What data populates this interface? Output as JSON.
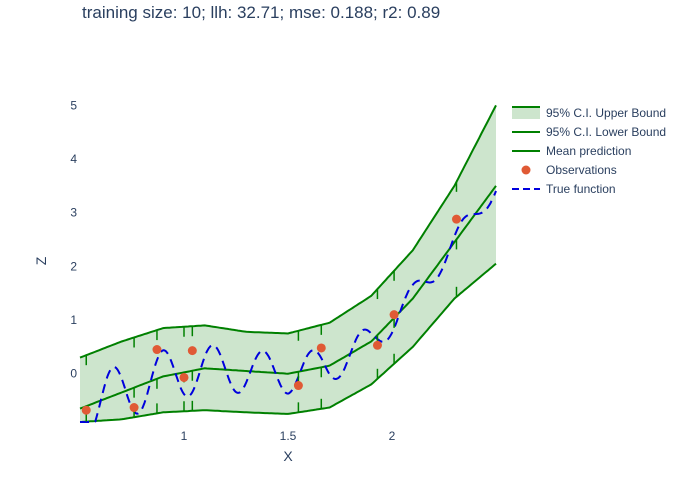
{
  "chart_data": {
    "type": "line",
    "title": "training size: 10; llh: 32.71; mse: 0.188; r2: 0.89",
    "xlabel": "X",
    "ylabel": "Z",
    "xlim": [
      0.5,
      2.5
    ],
    "ylim": [
      -0.9,
      5.1
    ],
    "x_ticks": [
      1,
      1.5,
      2
    ],
    "x_tick_labels": [
      "1",
      "1.5",
      "2"
    ],
    "y_ticks": [
      0,
      1,
      2,
      3,
      4,
      5
    ],
    "y_tick_labels": [
      "0",
      "1",
      "2",
      "3",
      "4",
      "5"
    ],
    "grid": false,
    "legend_position": "top-right",
    "colors": {
      "band_fill": "#cde5cd",
      "bound_line": "#008000",
      "mean_line": "#008000",
      "observation": "#e05a35",
      "true_function": "#0000dd"
    },
    "series": [
      {
        "name": "95% C.I. Upper Bound",
        "style": "line-with-fill",
        "x": [
          0.5,
          0.7,
          0.9,
          1.1,
          1.3,
          1.5,
          1.7,
          1.9,
          2.1,
          2.3,
          2.5
        ],
        "y": [
          0.3,
          0.6,
          0.85,
          0.9,
          0.78,
          0.75,
          0.95,
          1.45,
          2.3,
          3.5,
          5.0
        ]
      },
      {
        "name": "95% C.I. Lower Bound",
        "style": "line",
        "x": [
          0.5,
          0.7,
          0.9,
          1.1,
          1.3,
          1.5,
          1.7,
          1.9,
          2.1,
          2.3,
          2.5
        ],
        "y": [
          -0.9,
          -0.85,
          -0.72,
          -0.68,
          -0.72,
          -0.75,
          -0.63,
          -0.2,
          0.5,
          1.4,
          2.05
        ]
      },
      {
        "name": "Mean prediction",
        "style": "line",
        "x": [
          0.5,
          0.7,
          0.9,
          1.1,
          1.3,
          1.5,
          1.7,
          1.9,
          2.1,
          2.3,
          2.5
        ],
        "y": [
          -0.65,
          -0.35,
          -0.05,
          0.1,
          0.05,
          0.0,
          0.15,
          0.6,
          1.4,
          2.45,
          3.5
        ]
      },
      {
        "name": "Observations",
        "style": "markers",
        "x": [
          0.53,
          0.76,
          0.87,
          1.0,
          1.04,
          1.55,
          1.66,
          1.93,
          2.01,
          2.31
        ],
        "y": [
          -0.68,
          -0.63,
          0.45,
          -0.07,
          0.43,
          -0.22,
          0.48,
          0.53,
          1.1,
          2.88
        ]
      },
      {
        "name": "True function",
        "style": "dash",
        "x": [],
        "y": []
      }
    ]
  }
}
